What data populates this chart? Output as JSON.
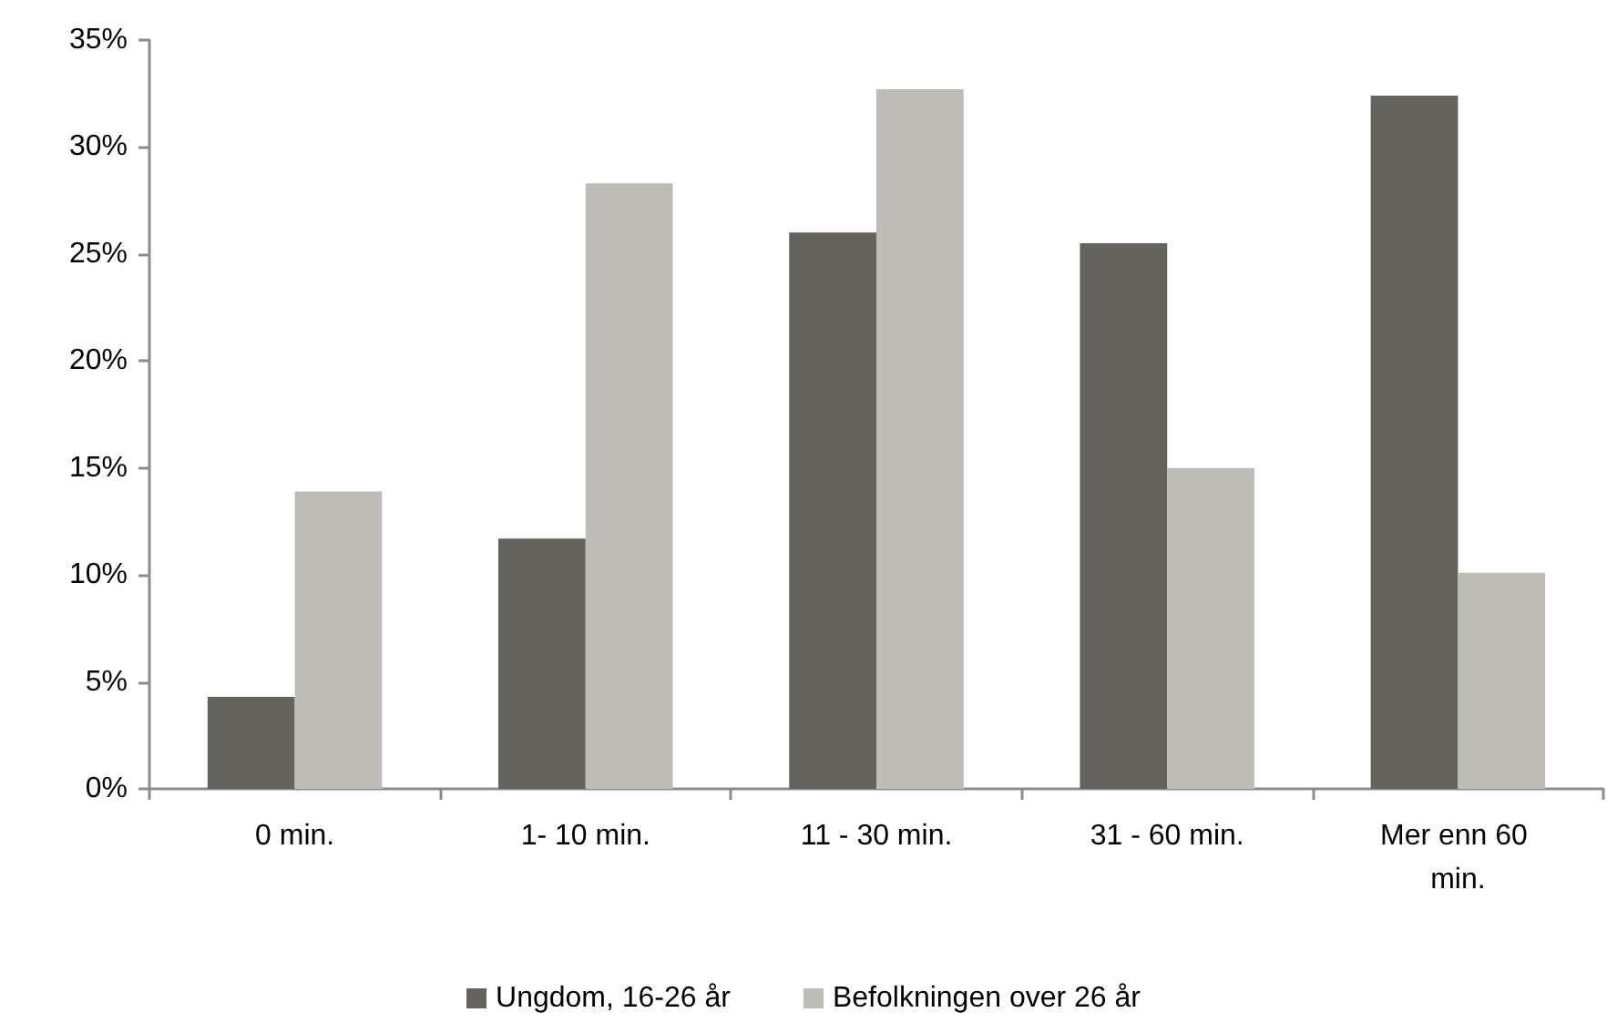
{
  "chart_data": {
    "type": "bar",
    "categories": [
      "0 min.",
      "1- 10 min.",
      "11 - 30 min.",
      "31 - 60 min.",
      "Mer enn 60 min."
    ],
    "series": [
      {
        "name": "Ungdom, 16-26 år",
        "color": "#64635e",
        "values": [
          4.3,
          11.7,
          26.0,
          25.5,
          32.4
        ]
      },
      {
        "name": "Befolkningen over 26 år",
        "color": "#bdbcb6",
        "values": [
          13.9,
          28.3,
          32.7,
          15.0,
          10.1
        ]
      }
    ],
    "ylim": [
      0,
      35
    ],
    "yticks": [
      {
        "value": 0,
        "label": "0%"
      },
      {
        "value": 5,
        "label": "5%"
      },
      {
        "value": 10,
        "label": "10%"
      },
      {
        "value": 15,
        "label": "15%"
      },
      {
        "value": 20,
        "label": "20%"
      },
      {
        "value": 25,
        "label": "25%"
      },
      {
        "value": 30,
        "label": "30%"
      },
      {
        "value": 35,
        "label": "35%"
      }
    ],
    "grid": false,
    "legend": "bottom"
  }
}
